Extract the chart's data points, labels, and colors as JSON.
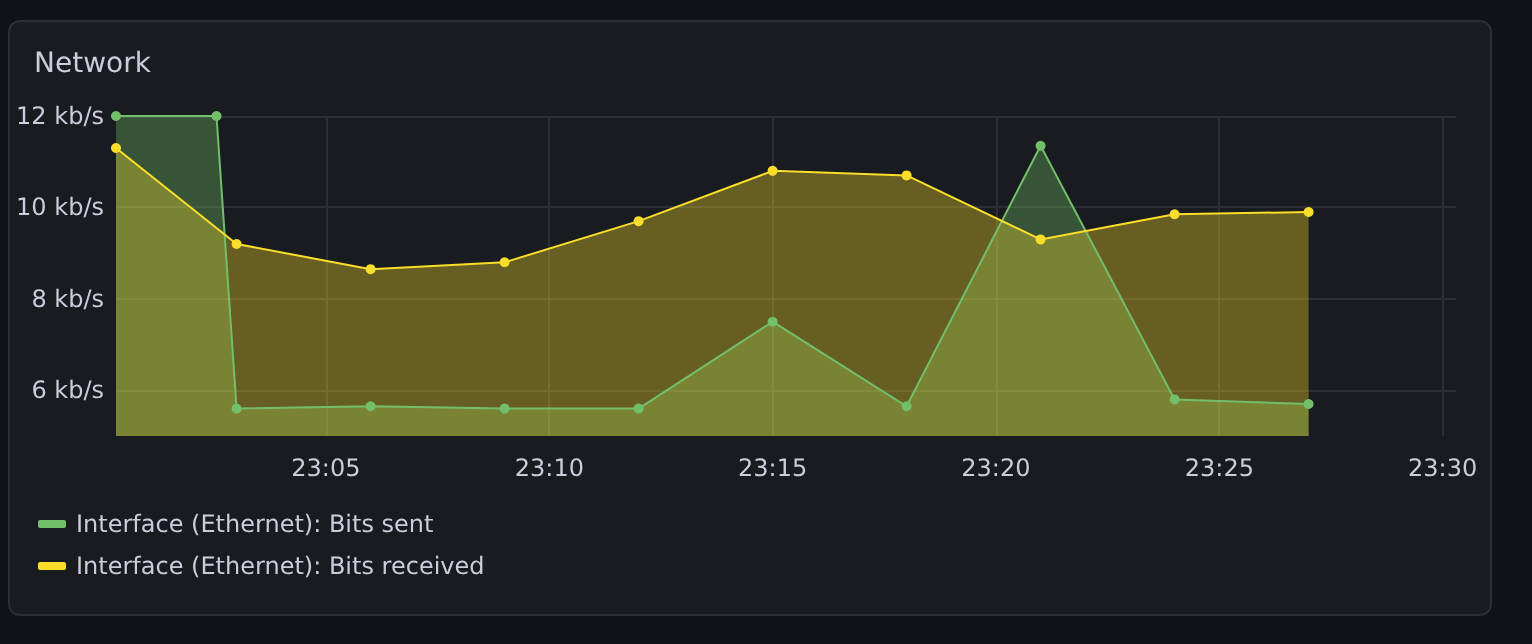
{
  "chart_data": {
    "type": "area",
    "title": "Network",
    "xlim": [
      23.005,
      23.505
    ],
    "xticks": [
      {
        "value": 23.0833,
        "label": "23:05"
      },
      {
        "value": 23.1667,
        "label": "23:10"
      },
      {
        "value": 23.25,
        "label": "23:15"
      },
      {
        "value": 23.3333,
        "label": "23:20"
      },
      {
        "value": 23.4167,
        "label": "23:25"
      },
      {
        "value": 23.5,
        "label": "23:30"
      }
    ],
    "ylim": [
      5,
      12
    ],
    "yticks": [
      {
        "value": 6,
        "label": "6 kb/s"
      },
      {
        "value": 8,
        "label": "8 kb/s"
      },
      {
        "value": 10,
        "label": "10 kb/s"
      },
      {
        "value": 12,
        "label": "12 kb/s"
      }
    ],
    "series": [
      {
        "name": "Interface (Ethernet): Bits sent",
        "color": "#73bf69",
        "x": [
          23.005,
          23.0425,
          23.05,
          23.1,
          23.15,
          23.2,
          23.25,
          23.3,
          23.35,
          23.4,
          23.45
        ],
        "values": [
          12,
          12,
          5.6,
          5.65,
          5.6,
          5.6,
          7.5,
          5.65,
          11.35,
          5.8,
          5.7
        ]
      },
      {
        "name": "Interface (Ethernet): Bits received",
        "color": "#fade2a",
        "x": [
          23.005,
          23.05,
          23.1,
          23.15,
          23.2,
          23.25,
          23.3,
          23.35,
          23.4,
          23.45
        ],
        "values": [
          11.3,
          9.2,
          8.65,
          8.8,
          9.7,
          10.8,
          10.7,
          9.3,
          9.85,
          9.9
        ]
      }
    ],
    "grid": true,
    "legend": "bottom",
    "marker": "circle",
    "line_style": "solid"
  }
}
